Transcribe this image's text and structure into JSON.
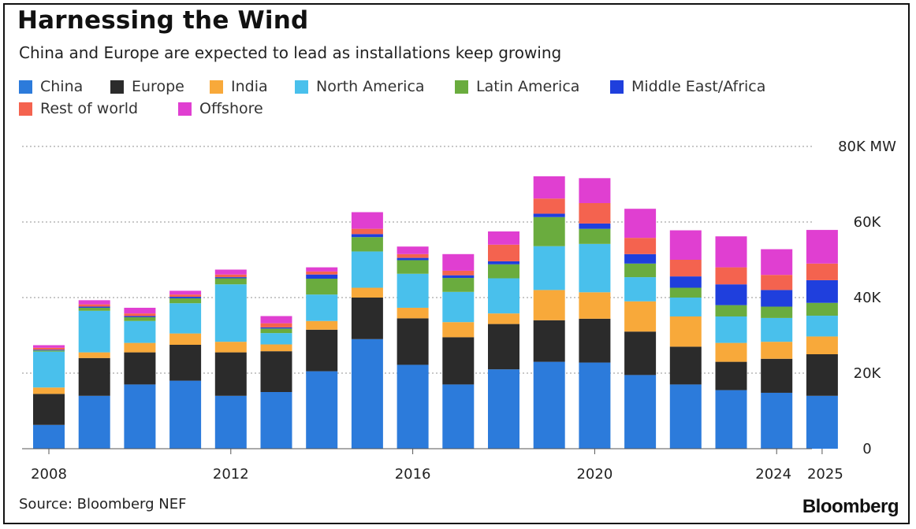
{
  "chart_data": {
    "type": "bar",
    "stacked": true,
    "title": "Harnessing the Wind",
    "subtitle": "China and Europe are expected to lead as installations keep growing",
    "unit": "MW",
    "y_axis_position": "right",
    "ylim": [
      0,
      80000
    ],
    "y_ticks": [
      {
        "value": 0,
        "label": "0"
      },
      {
        "value": 20000,
        "label": "20K"
      },
      {
        "value": 40000,
        "label": "40K"
      },
      {
        "value": 60000,
        "label": "60K"
      },
      {
        "value": 80000,
        "label": "80K MW"
      }
    ],
    "grid": "dotted horizontal",
    "legend_position": "top-left",
    "categories": [
      2008,
      2009,
      2010,
      2011,
      2012,
      2013,
      2014,
      2015,
      2016,
      2017,
      2018,
      2019,
      2020,
      2021,
      2022,
      2023,
      2024,
      2025
    ],
    "x_tick_labels": [
      {
        "value": 2008,
        "label": "2008"
      },
      {
        "value": 2012,
        "label": "2012"
      },
      {
        "value": 2016,
        "label": "2016"
      },
      {
        "value": 2020,
        "label": "2020"
      },
      {
        "value": 2024,
        "label": "2024"
      },
      {
        "value": 2025,
        "label": "2025"
      }
    ],
    "series": [
      {
        "name": "China",
        "color": "#2c7bdb",
        "values": [
          6300,
          14000,
          17000,
          18000,
          14000,
          15000,
          20500,
          29000,
          22200,
          17000,
          21000,
          23000,
          22800,
          19500,
          17000,
          15500,
          14800,
          14000
        ]
      },
      {
        "name": "Europe",
        "color": "#2b2b2b",
        "values": [
          8200,
          10000,
          8500,
          9500,
          11500,
          10800,
          11000,
          11000,
          12300,
          12500,
          12000,
          11000,
          11600,
          11500,
          10000,
          7500,
          9000,
          11000
        ]
      },
      {
        "name": "India",
        "color": "#f8a93a",
        "values": [
          1700,
          1500,
          2500,
          3000,
          2800,
          1800,
          2300,
          2600,
          2800,
          4000,
          2800,
          8000,
          7000,
          8000,
          8000,
          5000,
          4500,
          4700
        ]
      },
      {
        "name": "North America",
        "color": "#49c0ec",
        "values": [
          9500,
          11000,
          5800,
          8000,
          15200,
          3000,
          7000,
          9600,
          9000,
          8000,
          9300,
          11600,
          12800,
          6400,
          5000,
          7000,
          6300,
          5500
        ]
      },
      {
        "name": "Latin America",
        "color": "#6aac3e",
        "values": [
          300,
          800,
          1000,
          1300,
          1600,
          1200,
          4200,
          3800,
          3600,
          3700,
          3700,
          7700,
          4000,
          3600,
          2600,
          3000,
          3000,
          3400
        ]
      },
      {
        "name": "Middle East/Africa",
        "color": "#1f3fdd",
        "values": [
          200,
          300,
          300,
          400,
          300,
          300,
          1100,
          800,
          600,
          700,
          800,
          900,
          1400,
          2500,
          3000,
          5500,
          4400,
          6000
        ]
      },
      {
        "name": "Rest of world",
        "color": "#f4634f",
        "values": [
          500,
          600,
          700,
          600,
          700,
          1100,
          800,
          1400,
          1000,
          1200,
          4400,
          4000,
          5400,
          4300,
          4400,
          4500,
          4000,
          4400
        ]
      },
      {
        "name": "Offshore",
        "color": "#e03fd1",
        "values": [
          700,
          1100,
          1500,
          1000,
          1300,
          1900,
          1100,
          4400,
          2000,
          4400,
          3500,
          5900,
          6600,
          7700,
          7800,
          8200,
          6800,
          8900
        ]
      }
    ]
  },
  "legend": {
    "items": [
      {
        "label": "China",
        "color": "#2c7bdb"
      },
      {
        "label": "Europe",
        "color": "#2b2b2b"
      },
      {
        "label": "India",
        "color": "#f8a93a"
      },
      {
        "label": "North America",
        "color": "#49c0ec"
      },
      {
        "label": "Latin America",
        "color": "#6aac3e"
      },
      {
        "label": "Middle East/Africa",
        "color": "#1f3fdd"
      },
      {
        "label": "Rest of world",
        "color": "#f4634f"
      },
      {
        "label": "Offshore",
        "color": "#e03fd1"
      }
    ]
  },
  "footer": {
    "source": "Source: Bloomberg NEF",
    "brand": "Bloomberg"
  }
}
